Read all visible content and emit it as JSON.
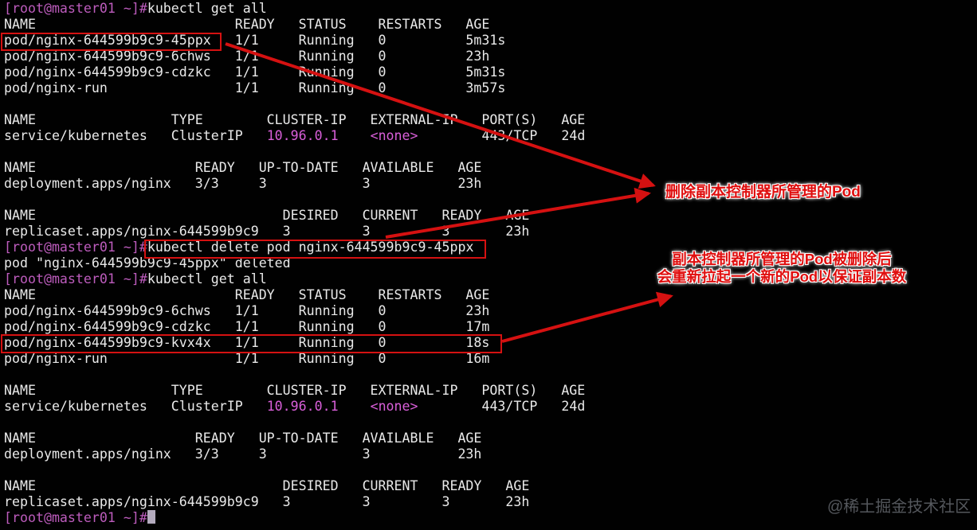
{
  "terminal": {
    "prompt": "[root@master01 ~]#",
    "lines": [
      {
        "s": [
          [
            "p",
            "[root@master01 ~]#"
          ],
          [
            "w",
            "kubectl get all"
          ]
        ]
      },
      {
        "s": [
          [
            "w",
            "NAME                         READY   STATUS    RESTARTS   AGE"
          ]
        ]
      },
      {
        "s": [
          [
            "w",
            "pod/nginx-644599b9c9-45ppx   1/1     Running   0          5m31s"
          ]
        ]
      },
      {
        "s": [
          [
            "w",
            "pod/nginx-644599b9c9-6chws   1/1     Running   0          23h"
          ]
        ]
      },
      {
        "s": [
          [
            "w",
            "pod/nginx-644599b9c9-cdzkc   1/1     Running   0          5m31s"
          ]
        ]
      },
      {
        "s": [
          [
            "w",
            "pod/nginx-run                1/1     Running   0          3m57s"
          ]
        ]
      },
      {
        "s": []
      },
      {
        "s": [
          [
            "w",
            "NAME                 TYPE        CLUSTER-IP   EXTERNAL-IP   PORT(S)   AGE"
          ]
        ]
      },
      {
        "s": [
          [
            "w",
            "service/kubernetes   ClusterIP   "
          ],
          [
            "m",
            "10.96.0.1"
          ],
          [
            "w",
            "    "
          ],
          [
            "m",
            "<none>"
          ],
          [
            "w",
            "        443/TCP   24d"
          ]
        ]
      },
      {
        "s": []
      },
      {
        "s": [
          [
            "w",
            "NAME                    READY   UP-TO-DATE   AVAILABLE   AGE"
          ]
        ]
      },
      {
        "s": [
          [
            "w",
            "deployment.apps/nginx   3/3     3            3           23h"
          ]
        ]
      },
      {
        "s": []
      },
      {
        "s": [
          [
            "w",
            "NAME                               DESIRED   CURRENT   READY   AGE"
          ]
        ]
      },
      {
        "s": [
          [
            "w",
            "replicaset.apps/nginx-644599b9c9   3         3         3       23h"
          ]
        ]
      },
      {
        "s": [
          [
            "p",
            "[root@master01 ~]#"
          ],
          [
            "w",
            "kubectl delete pod nginx-644599b9c9-45ppx"
          ]
        ]
      },
      {
        "s": [
          [
            "w",
            "pod \"nginx-644599b9c9-45ppx\" deleted"
          ]
        ]
      },
      {
        "s": [
          [
            "p",
            "[root@master01 ~]#"
          ],
          [
            "w",
            "kubectl get all"
          ]
        ]
      },
      {
        "s": [
          [
            "w",
            "NAME                         READY   STATUS    RESTARTS   AGE"
          ]
        ]
      },
      {
        "s": [
          [
            "w",
            "pod/nginx-644599b9c9-6chws   1/1     Running   0          23h"
          ]
        ]
      },
      {
        "s": [
          [
            "w",
            "pod/nginx-644599b9c9-cdzkc   1/1     Running   0          17m"
          ]
        ]
      },
      {
        "s": [
          [
            "w",
            "pod/nginx-644599b9c9-kvx4x   1/1     Running   0          18s"
          ]
        ]
      },
      {
        "s": [
          [
            "w",
            "pod/nginx-run                1/1     Running   0          16m"
          ]
        ]
      },
      {
        "s": []
      },
      {
        "s": [
          [
            "w",
            "NAME                 TYPE        CLUSTER-IP   EXTERNAL-IP   PORT(S)   AGE"
          ]
        ]
      },
      {
        "s": [
          [
            "w",
            "service/kubernetes   ClusterIP   "
          ],
          [
            "m",
            "10.96.0.1"
          ],
          [
            "w",
            "    "
          ],
          [
            "m",
            "<none>"
          ],
          [
            "w",
            "        443/TCP   24d"
          ]
        ]
      },
      {
        "s": []
      },
      {
        "s": [
          [
            "w",
            "NAME                    READY   UP-TO-DATE   AVAILABLE   AGE"
          ]
        ]
      },
      {
        "s": [
          [
            "w",
            "deployment.apps/nginx   3/3     3            3           23h"
          ]
        ]
      },
      {
        "s": []
      },
      {
        "s": [
          [
            "w",
            "NAME                               DESIRED   CURRENT   READY   AGE"
          ]
        ]
      },
      {
        "s": [
          [
            "w",
            "replicaset.apps/nginx-644599b9c9   3         3         3       23h"
          ]
        ]
      },
      {
        "s": [
          [
            "p",
            "[root@master01 ~]#"
          ]
        ],
        "cursor": true
      }
    ]
  },
  "annotations": {
    "delete_note": "删除副本控制器所管理的Pod",
    "recreate_note_line1": "副本控制器所管理的Pod被删除后",
    "recreate_note_line2": "会重新拉起一个新的Pod以保证副本数"
  },
  "watermark": "@稀土掘金技术社区",
  "colors": {
    "background": "#010101",
    "text": "#e9e9e9",
    "prompt_magenta": "#bd5cbd",
    "value_magenta": "#d95fd9",
    "annotation_red": "#e00e0e",
    "box_arrow_red": "#d51111",
    "cursor": "#b4abbe",
    "watermark_gray": "#54575c"
  }
}
